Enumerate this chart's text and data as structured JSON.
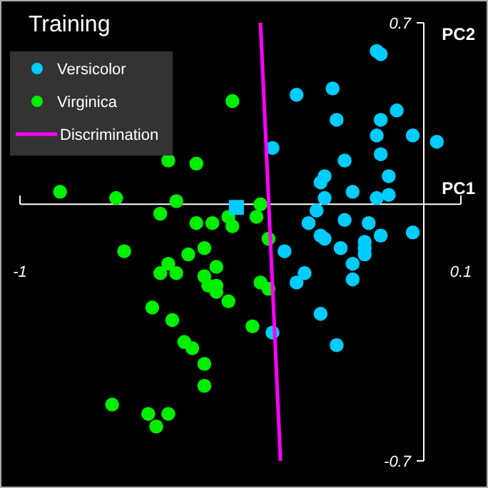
{
  "chart_data": {
    "type": "scatter",
    "title": "Training",
    "xlabel": "PC1",
    "ylabel": "PC2",
    "xlim": [
      -1,
      0.1
    ],
    "ylim": [
      -0.7,
      0.7
    ],
    "xticks": [
      -1,
      0.1
    ],
    "yticks": [
      -0.7,
      0.7
    ],
    "grid": false,
    "ref_lines": [
      {
        "axis": "y",
        "value": 0.12,
        "color": "#ffffff"
      }
    ],
    "legend": "top left",
    "marker": "circle",
    "series": [
      {
        "name": "Versicolor",
        "color": "#00ccff",
        "x": [
          -0.11,
          -0.1,
          -0.31,
          -0.22,
          -0.06,
          -0.21,
          -0.1,
          -0.11,
          -0.02,
          0.04,
          -0.37,
          -0.1,
          -0.19,
          -0.24,
          -0.25,
          -0.08,
          -0.17,
          -0.08,
          -0.24,
          -0.11,
          -0.26,
          -0.28,
          -0.19,
          -0.13,
          -0.02,
          -0.1,
          -0.25,
          -0.24,
          -0.14,
          -0.34,
          -0.2,
          -0.14,
          -0.14,
          -0.17,
          -0.29,
          -0.31,
          -0.17,
          -0.25,
          -0.37,
          -0.21
        ],
        "values": [
          0.61,
          0.6,
          0.47,
          0.49,
          0.42,
          0.39,
          0.39,
          0.34,
          0.34,
          0.32,
          0.3,
          0.28,
          0.26,
          0.21,
          0.19,
          0.21,
          0.16,
          0.15,
          0.14,
          0.14,
          0.1,
          0.06,
          0.07,
          0.06,
          0.03,
          0.02,
          0.02,
          0.01,
          0,
          -0.03,
          -0.02,
          -0.02,
          -0.04,
          -0.07,
          -0.1,
          -0.13,
          -0.12,
          -0.23,
          -0.29,
          -0.33
        ]
      },
      {
        "name": "Virginica",
        "color": "#00ee00",
        "x": [
          -0.47,
          -0.63,
          -0.56,
          -0.9,
          -0.76,
          -0.61,
          -0.65,
          -0.56,
          -0.52,
          -0.48,
          -0.47,
          -0.4,
          -0.41,
          -0.38,
          -0.4,
          -0.38,
          -0.42,
          -0.74,
          -0.54,
          -0.58,
          -0.63,
          -0.65,
          -0.61,
          -0.51,
          -0.54,
          -0.53,
          -0.51,
          -0.51,
          -0.48,
          -0.67,
          -0.62,
          -0.59,
          -0.57,
          -0.54,
          -0.54,
          -0.77,
          -0.68,
          -0.63,
          -0.66
        ],
        "values": [
          0.45,
          0.26,
          0.25,
          0.16,
          0.14,
          0.13,
          0.09,
          0.06,
          0.06,
          0.08,
          0.05,
          0.12,
          0.08,
          0.01,
          -0.13,
          -0.15,
          -0.27,
          -0.03,
          -0.02,
          -0.04,
          -0.07,
          -0.1,
          -0.1,
          -0.08,
          -0.11,
          -0.14,
          -0.14,
          -0.16,
          -0.19,
          -0.21,
          -0.25,
          -0.32,
          -0.34,
          -0.39,
          -0.46,
          -0.52,
          -0.55,
          -0.55,
          -0.59
        ]
      },
      {
        "color": "#00ccff",
        "marker": "square",
        "x": [
          -0.46
        ],
        "values": [
          0.11
        ]
      },
      {
        "name": "Discrimination",
        "type": "line",
        "color": "#ff00ff",
        "marker": "none",
        "x": [
          -0.4,
          -0.35
        ],
        "values": [
          0.7,
          -0.7
        ]
      }
    ]
  }
}
